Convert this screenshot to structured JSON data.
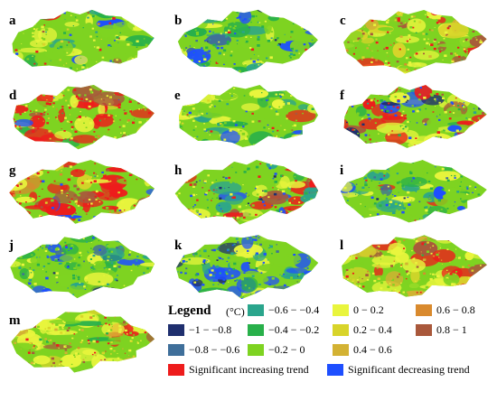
{
  "panels": [
    {
      "label": "a",
      "style": "green-mixed"
    },
    {
      "label": "b",
      "style": "green-blue"
    },
    {
      "label": "c",
      "style": "yellow-red"
    },
    {
      "label": "d",
      "style": "red-heavy"
    },
    {
      "label": "e",
      "style": "green-mixed"
    },
    {
      "label": "f",
      "style": "red-blue"
    },
    {
      "label": "g",
      "style": "red-dominant"
    },
    {
      "label": "h",
      "style": "red-blue"
    },
    {
      "label": "i",
      "style": "green-blue"
    },
    {
      "label": "j",
      "style": "green-blue"
    },
    {
      "label": "k",
      "style": "blue-heavy"
    },
    {
      "label": "l",
      "style": "yellow-red"
    },
    {
      "label": "m",
      "style": "yellow-red"
    }
  ],
  "legend": {
    "title": "Legend",
    "unit": "(°C)",
    "classes": [
      {
        "label": "−1  − −0.8",
        "color": "#1f2f6e"
      },
      {
        "label": "−0.8 − −0.6",
        "color": "#3f6f9a"
      },
      {
        "label": "−0.6 − −0.4",
        "color": "#2aa58c"
      },
      {
        "label": "−0.4 − −0.2",
        "color": "#28b04a"
      },
      {
        "label": "−0.2 −  0",
        "color": "#7ed321"
      },
      {
        "label": "0  − 0.2",
        "color": "#e9f53d"
      },
      {
        "label": "0.2 − 0.4",
        "color": "#d8d42a"
      },
      {
        "label": "0.4 − 0.6",
        "color": "#d3b233"
      },
      {
        "label": "0.6 − 0.8",
        "color": "#d98a2e"
      },
      {
        "label": "0.8 − 1",
        "color": "#a9583b"
      }
    ],
    "significant": [
      {
        "label": "Significant increasing trend",
        "color": "#ee1c1c"
      },
      {
        "label": "Significant decreasing trend",
        "color": "#1e4fff"
      }
    ]
  }
}
